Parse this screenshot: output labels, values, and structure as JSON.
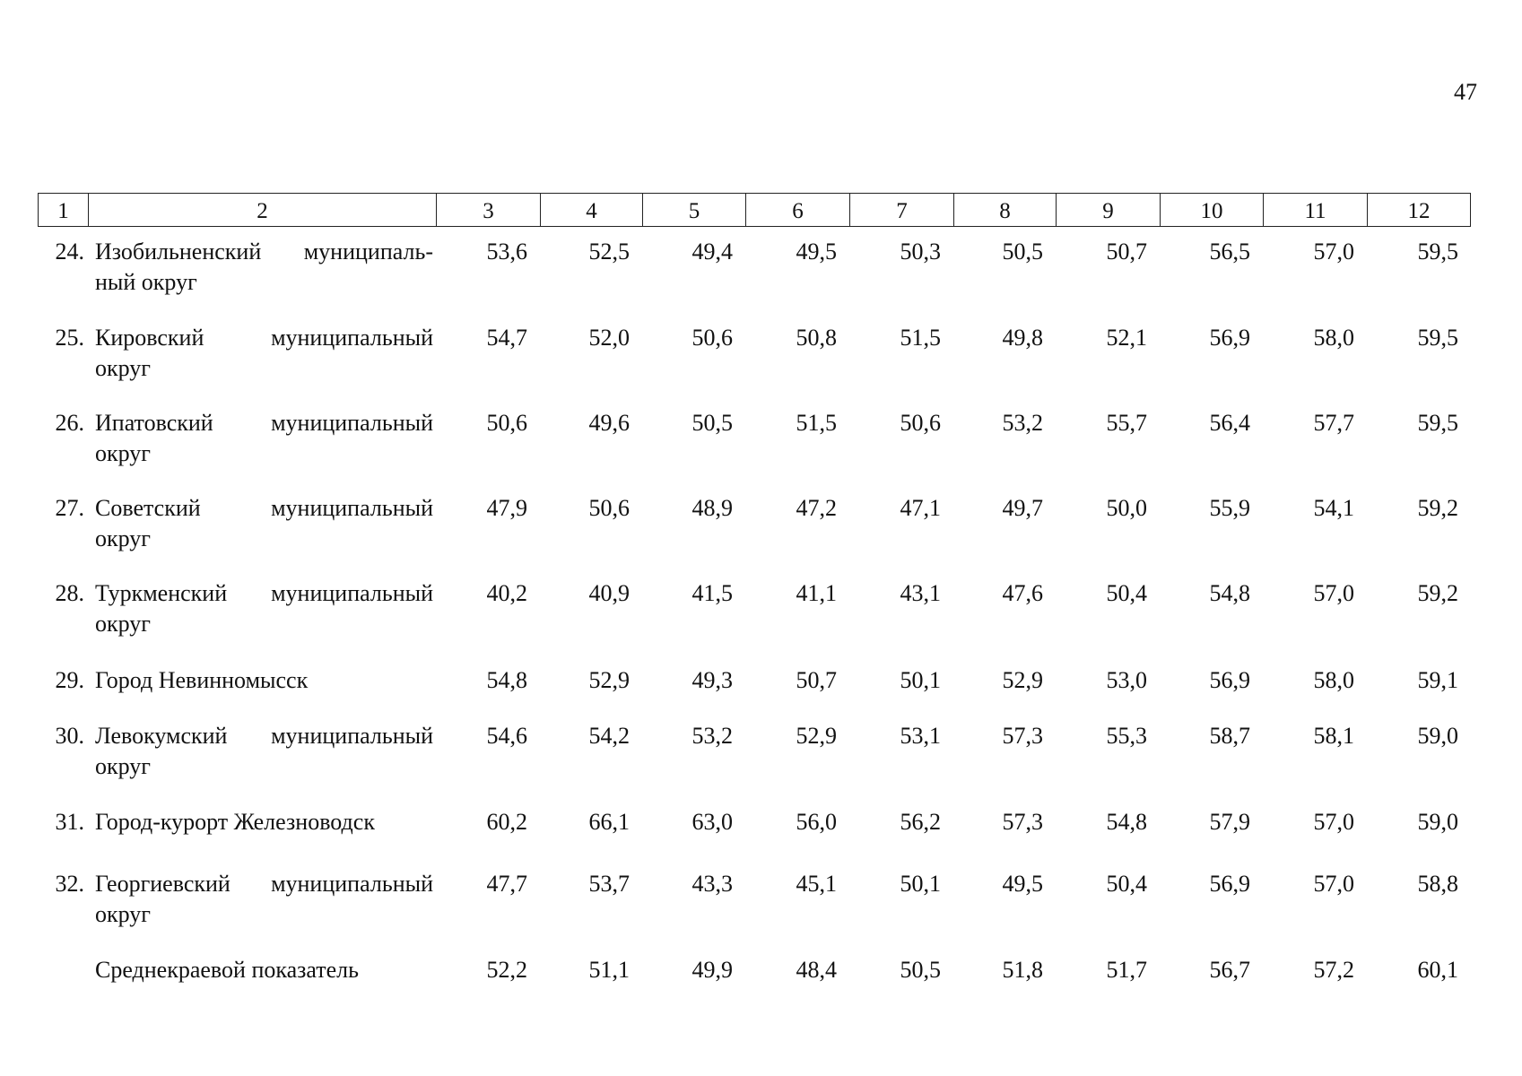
{
  "page_number": "47",
  "table": {
    "header": [
      "1",
      "2",
      "3",
      "4",
      "5",
      "6",
      "7",
      "8",
      "9",
      "10",
      "11",
      "12"
    ],
    "rows": [
      {
        "number": "24.",
        "name": [
          "Изобильненский муниципаль-",
          "ный округ"
        ],
        "values": [
          "53,6",
          "52,5",
          "49,4",
          "49,5",
          "50,3",
          "50,5",
          "50,7",
          "56,5",
          "57,0",
          "59,5"
        ]
      },
      {
        "number": "25.",
        "name": [
          "Кировский муниципальный",
          "округ"
        ],
        "values": [
          "54,7",
          "52,0",
          "50,6",
          "50,8",
          "51,5",
          "49,8",
          "52,1",
          "56,9",
          "58,0",
          "59,5"
        ]
      },
      {
        "number": "26.",
        "name": [
          "Ипатовский муниципальный",
          "округ"
        ],
        "values": [
          "50,6",
          "49,6",
          "50,5",
          "51,5",
          "50,6",
          "53,2",
          "55,7",
          "56,4",
          "57,7",
          "59,5"
        ]
      },
      {
        "number": "27.",
        "name": [
          "Советский муниципальный",
          "округ"
        ],
        "values": [
          "47,9",
          "50,6",
          "48,9",
          "47,2",
          "47,1",
          "49,7",
          "50,0",
          "55,9",
          "54,1",
          "59,2"
        ]
      },
      {
        "number": "28.",
        "name": [
          "Туркменский муниципальный",
          "округ"
        ],
        "values": [
          "40,2",
          "40,9",
          "41,5",
          "41,1",
          "43,1",
          "47,6",
          "50,4",
          "54,8",
          "57,0",
          "59,2"
        ]
      },
      {
        "number": "29.",
        "name": [
          "Город Невинномысск"
        ],
        "values": [
          "54,8",
          "52,9",
          "49,3",
          "50,7",
          "50,1",
          "52,9",
          "53,0",
          "56,9",
          "58,0",
          "59,1"
        ]
      },
      {
        "number": "30.",
        "name": [
          "Левокумский муниципальный",
          "округ"
        ],
        "values": [
          "54,6",
          "54,2",
          "53,2",
          "52,9",
          "53,1",
          "57,3",
          "55,3",
          "58,7",
          "58,1",
          "59,0"
        ]
      },
      {
        "number": "31.",
        "name": [
          "Город-курорт Железноводск"
        ],
        "values": [
          "60,2",
          "66,1",
          "63,0",
          "56,0",
          "56,2",
          "57,3",
          "54,8",
          "57,9",
          "57,0",
          "59,0"
        ]
      },
      {
        "number": "32.",
        "name": [
          "Георгиевский муниципальный",
          "округ"
        ],
        "values": [
          "47,7",
          "53,7",
          "43,3",
          "45,1",
          "50,1",
          "49,5",
          "50,4",
          "56,9",
          "57,0",
          "58,8"
        ]
      },
      {
        "name": [
          "Среднекраевой показатель"
        ],
        "values": [
          "52,2",
          "51,1",
          "49,9",
          "48,4",
          "50,5",
          "51,8",
          "51,7",
          "56,7",
          "57,2",
          "60,1"
        ]
      }
    ]
  }
}
